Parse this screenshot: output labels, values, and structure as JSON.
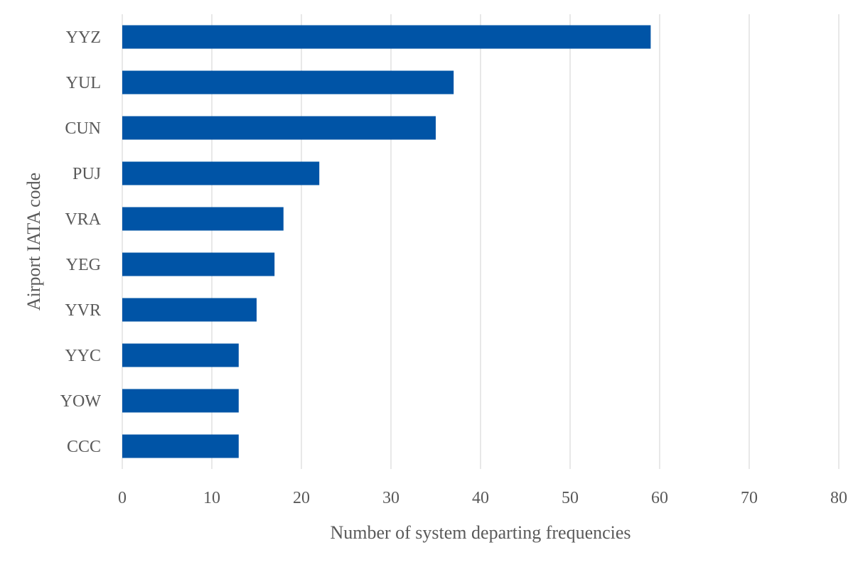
{
  "chart_data": {
    "type": "bar",
    "orientation": "horizontal",
    "title": "",
    "xlabel": "Number of system departing frequencies",
    "ylabel": "Airport IATA code",
    "categories": [
      "YYZ",
      "YUL",
      "CUN",
      "PUJ",
      "VRA",
      "YEG",
      "YVR",
      "YYC",
      "YOW",
      "CCC"
    ],
    "values": [
      59,
      37,
      35,
      22,
      18,
      17,
      15,
      13,
      13,
      13
    ],
    "xlim": [
      0,
      80
    ],
    "xticks": [
      0,
      10,
      20,
      30,
      40,
      50,
      60,
      70,
      80
    ],
    "grid": true,
    "legend": "none",
    "bar_color": "#0054A6"
  }
}
